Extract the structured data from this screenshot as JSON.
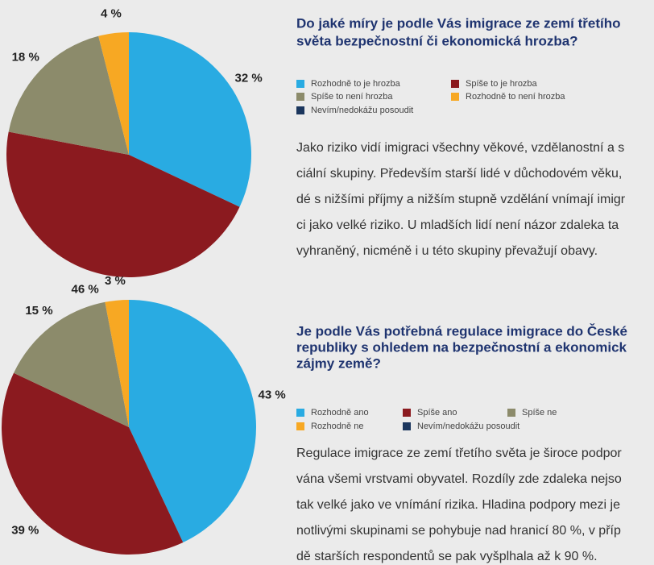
{
  "chart_data": [
    {
      "type": "pie",
      "title": [
        "Do jaké míry je podle Vás imigrace ze zemí třetího",
        "světa bezpečnostní či ekonomická hrozba?"
      ],
      "categories": [
        "Rozhodně to je hrozba",
        "Spíše to je hrozba",
        "Spíše to není hrozba",
        "Rozhodně to není hrozba",
        "Nevím/nedokážu posoudit"
      ],
      "values": [
        32,
        46,
        18,
        4,
        0
      ],
      "value_labels": [
        "32 %",
        "46 %",
        "18 %",
        "4 %",
        null
      ],
      "colors": [
        "#29abe2",
        "#8b1a1f",
        "#8c8b6b",
        "#f7a823",
        "#1b365d"
      ],
      "text": [
        "Jako riziko vidí imigraci všechny věkové, vzdělanostní a s",
        "ciální skupiny. Především starší lidé v důchodovém věku,",
        "dé s nižšími příjmy a nižším stupně vzdělání vnímají imigr",
        "ci jako velké riziko. U mladších lidí není názor zdaleka ta",
        "vyhraněný, nicméně i u této skupiny převažují obavy."
      ]
    },
    {
      "type": "pie",
      "title": [
        "Je podle Vás potřebná regulace imigrace do České",
        "republiky s ohledem na bezpečnostní a ekonomick",
        "zájmy země?"
      ],
      "categories": [
        "Rozhodně ano",
        "Spíše ano",
        "Spíše ne",
        "Rozhodně ne",
        "Nevím/nedokážu posoudit"
      ],
      "values": [
        43,
        39,
        15,
        3,
        0
      ],
      "value_labels": [
        "43 %",
        "39 %",
        "15 %",
        "3 %",
        null
      ],
      "colors": [
        "#29abe2",
        "#8b1a1f",
        "#8c8b6b",
        "#f7a823",
        "#1b365d"
      ],
      "text": [
        "Regulace imigrace ze zemí třetího světa je široce podpor",
        "vána všemi vrstvami obyvatel. Rozdíly zde zdaleka nejso",
        "tak velké jako ve vnímání rizika. Hladina podpory mezi je",
        "notlivými skupinami se pohybuje nad hranicí 80 %, v příp",
        "dě starších respondentů se pak vyšplhala až k 90 %."
      ]
    }
  ]
}
